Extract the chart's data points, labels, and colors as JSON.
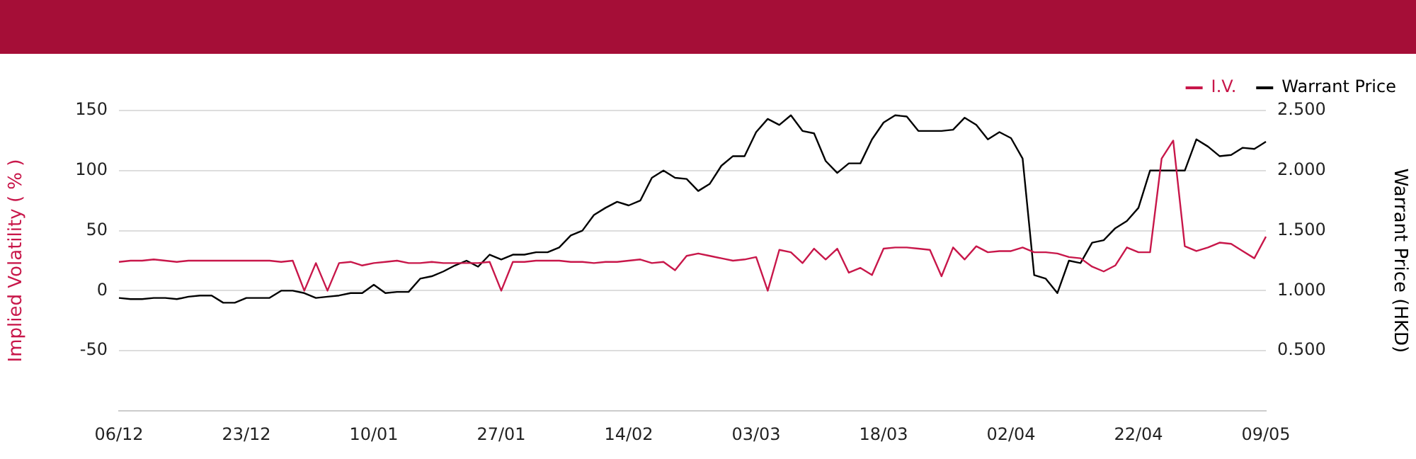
{
  "chart_data": {
    "type": "line",
    "ylabel": "Implied Volatility ( % )",
    "y2label": "Warrant Price (HKD)",
    "categories": [
      "06/12",
      null,
      null,
      null,
      null,
      null,
      null,
      null,
      null,
      null,
      null,
      "23/12",
      null,
      null,
      null,
      null,
      null,
      null,
      null,
      null,
      null,
      null,
      "10/01",
      null,
      null,
      null,
      null,
      null,
      null,
      null,
      null,
      null,
      null,
      "27/01",
      null,
      null,
      null,
      null,
      null,
      null,
      null,
      null,
      null,
      null,
      "14/02",
      null,
      null,
      null,
      null,
      null,
      null,
      null,
      null,
      null,
      null,
      "03/03",
      null,
      null,
      null,
      null,
      null,
      null,
      null,
      null,
      null,
      null,
      "18/03",
      null,
      null,
      null,
      null,
      null,
      null,
      null,
      null,
      null,
      null,
      "02/04",
      null,
      null,
      null,
      null,
      null,
      null,
      null,
      null,
      null,
      null,
      "22/04",
      null,
      null,
      null,
      null,
      null,
      null,
      null,
      null,
      null,
      null,
      "09/05"
    ],
    "series": [
      {
        "name": "I.V.",
        "color": "#c8174a",
        "axis": "y",
        "values": [
          24,
          25,
          25,
          26,
          25,
          24,
          25,
          25,
          25,
          25,
          25,
          25,
          25,
          25,
          24,
          25,
          0,
          23,
          0,
          23,
          24,
          21,
          23,
          24,
          25,
          23,
          23,
          24,
          23,
          23,
          23,
          23,
          24,
          0,
          24,
          24,
          25,
          25,
          25,
          24,
          24,
          23,
          24,
          24,
          25,
          26,
          23,
          24,
          17,
          29,
          31,
          29,
          27,
          25,
          26,
          28,
          0,
          34,
          32,
          23,
          35,
          26,
          35,
          15,
          19,
          13,
          35,
          36,
          36,
          35,
          34,
          12,
          36,
          26,
          37,
          32,
          33,
          33,
          36,
          32,
          32,
          31,
          28,
          27,
          20,
          16,
          21,
          36,
          32,
          32,
          110,
          125,
          37,
          33,
          36,
          40,
          39,
          33,
          27,
          45
        ]
      },
      {
        "name": "Warrant Price",
        "color": "#000000",
        "axis": "y2",
        "values": [
          0.94,
          0.93,
          0.93,
          0.94,
          0.94,
          0.93,
          0.95,
          0.96,
          0.96,
          0.9,
          0.9,
          0.94,
          0.94,
          0.94,
          1.0,
          1.0,
          0.98,
          0.94,
          0.95,
          0.96,
          0.98,
          0.98,
          1.05,
          0.98,
          0.99,
          0.99,
          1.1,
          1.12,
          1.16,
          1.21,
          1.25,
          1.2,
          1.3,
          1.26,
          1.3,
          1.3,
          1.32,
          1.32,
          1.36,
          1.46,
          1.5,
          1.63,
          1.69,
          1.74,
          1.71,
          1.75,
          1.94,
          2.0,
          1.94,
          1.93,
          1.83,
          1.89,
          2.04,
          2.12,
          2.12,
          2.32,
          2.43,
          2.38,
          2.46,
          2.33,
          2.31,
          2.08,
          1.98,
          2.06,
          2.06,
          2.26,
          2.4,
          2.46,
          2.45,
          2.33,
          2.33,
          2.33,
          2.34,
          2.44,
          2.38,
          2.26,
          2.32,
          2.27,
          2.1,
          1.13,
          1.1,
          0.98,
          1.25,
          1.23,
          1.4,
          1.42,
          1.52,
          1.58,
          1.69,
          2.0,
          2.0,
          2.0,
          2.0,
          2.26,
          2.2,
          2.12,
          2.13,
          2.19,
          2.18,
          2.24
        ]
      }
    ],
    "ylim": [
      -100,
      150
    ],
    "yticks": [
      -50,
      0,
      50,
      100,
      150
    ],
    "y2lim": [
      0,
      2.5
    ],
    "y2ticks": [
      {
        "value": 0.5,
        "label": "0.500"
      },
      {
        "value": 1,
        "label": "1.000"
      },
      {
        "value": 1.5,
        "label": "1.500"
      },
      {
        "value": 2,
        "label": "2.000"
      },
      {
        "value": 2.5,
        "label": "2.500"
      }
    ],
    "grid": "y",
    "legend": "top right"
  }
}
